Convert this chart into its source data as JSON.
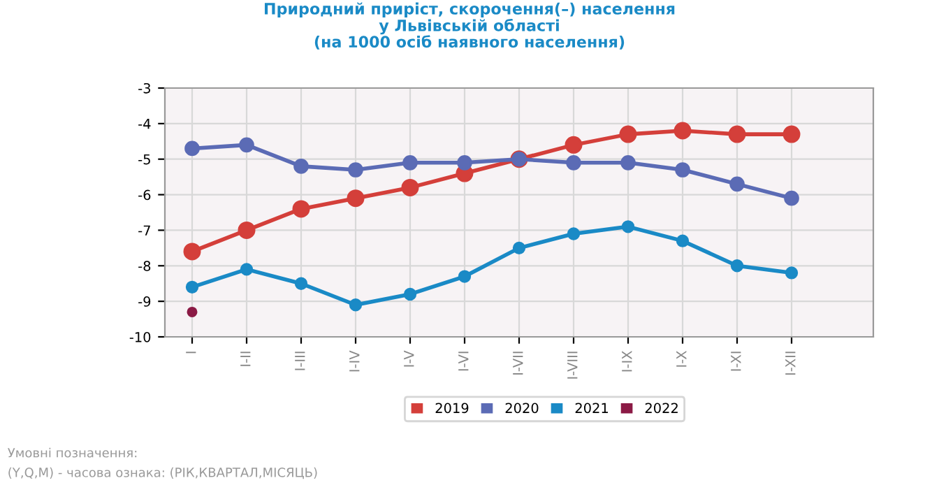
{
  "chart_data": {
    "type": "line",
    "title": "Природний приріст, скорочення(–) населення\nу Львівській області\n(на 1000 осіб наявного населення)",
    "categories": [
      "I",
      "I-II",
      "I-III",
      "I-IV",
      "I-V",
      "I-VI",
      "I-VII",
      "I-VIII",
      "I-IX",
      "I-X",
      "I-XI",
      "I-XII"
    ],
    "series": [
      {
        "name": "2019",
        "color": "#d43f3a",
        "values": [
          -7.6,
          -7.0,
          -6.4,
          -6.1,
          -5.8,
          -5.4,
          -5.0,
          -4.6,
          -4.3,
          -4.2,
          -4.3,
          -4.3
        ]
      },
      {
        "name": "2020",
        "color": "#5b6bb5",
        "values": [
          -4.7,
          -4.6,
          -5.2,
          -5.3,
          -5.1,
          -5.1,
          -5.0,
          -5.1,
          -5.1,
          -5.3,
          -5.7,
          -6.1
        ]
      },
      {
        "name": "2021",
        "color": "#1a8ac6",
        "values": [
          -8.6,
          -8.1,
          -8.5,
          -9.1,
          -8.8,
          -8.3,
          -7.5,
          -7.1,
          -6.9,
          -7.3,
          -8.0,
          -8.2
        ]
      },
      {
        "name": "2022",
        "color": "#8b1a45",
        "values": [
          -9.3,
          null,
          null,
          null,
          null,
          null,
          null,
          null,
          null,
          null,
          null,
          null
        ]
      }
    ],
    "ylim": [
      -10,
      -3
    ],
    "yticks": [
      -10,
      -9,
      -8,
      -7,
      -6,
      -5,
      -4,
      -3
    ],
    "grid": true,
    "legend": "bottom",
    "marker": "circle",
    "line_style": "solid",
    "annotations": [
      "Умовні позначення:",
      "(Y,Q,M) - часова ознака: (РІК,КВАРТАЛ,МІСЯЦЬ)"
    ]
  }
}
